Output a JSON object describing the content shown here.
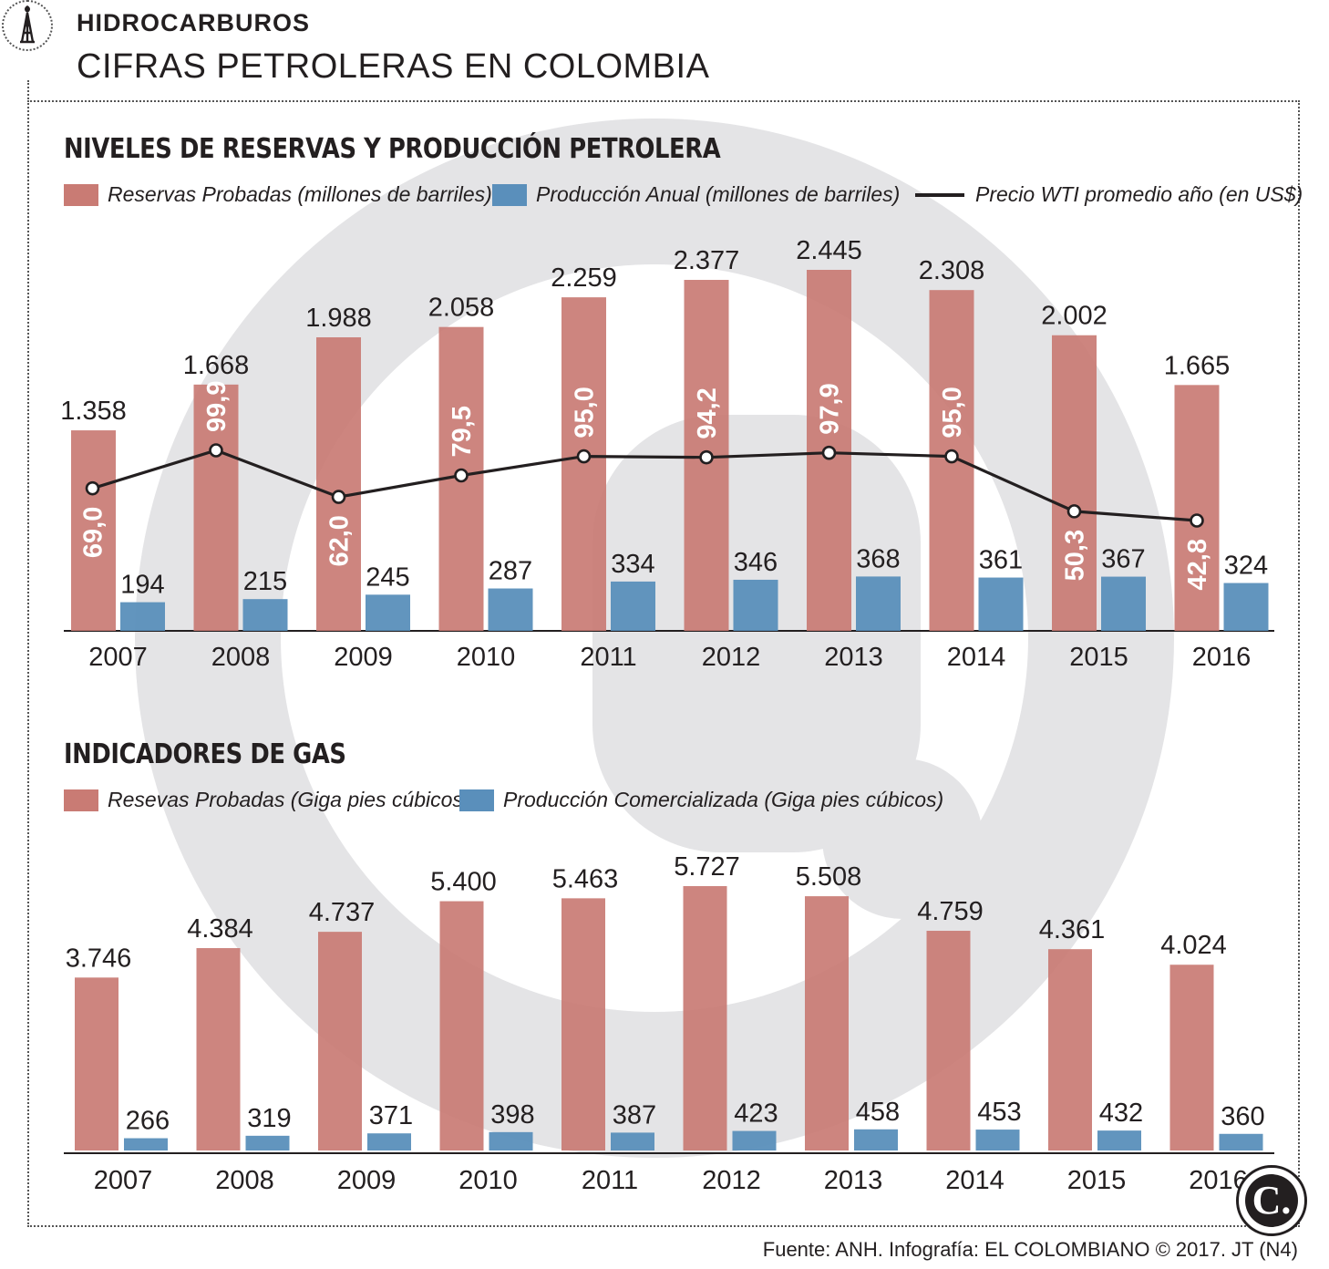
{
  "header": {
    "kicker": "HIDROCARBUROS",
    "headline": "CIFRAS PETROLERAS EN COLOMBIA",
    "icon": "oil-derrick-icon"
  },
  "colors": {
    "reserves": "#c97b74",
    "production": "#5a8fbb",
    "line": "#231f20",
    "watermark": "#e4e4e6"
  },
  "oil": {
    "title": "NIVELES DE RESERVAS Y PRODUCCIÓN PETROLERA",
    "legend": {
      "reserves": "Reservas Probadas (millones de barriles)",
      "production": "Producción Anual  (millones de barriles)",
      "price": "Precio WTI promedio año (en US$)"
    }
  },
  "gas": {
    "title": "INDICADORES DE GAS",
    "legend": {
      "reserves": "Resevas Probadas (Giga pies cúbicos)",
      "production": "Producción Comercializada (Giga pies cúbicos)"
    }
  },
  "chart_data": [
    {
      "type": "bar",
      "title": "NIVELES DE RESERVAS Y PRODUCCIÓN PETROLERA",
      "categories": [
        "2007",
        "2008",
        "2009",
        "2010",
        "2011",
        "2012",
        "2013",
        "2014",
        "2015",
        "2016"
      ],
      "series": [
        {
          "name": "Reservas Probadas (millones de barriles)",
          "values": [
            1358,
            1668,
            1988,
            2058,
            2259,
            2377,
            2445,
            2308,
            2002,
            1665
          ],
          "labels": [
            "1.358",
            "1.668",
            "1.988",
            "2.058",
            "2.259",
            "2.377",
            "2.445",
            "2.308",
            "2.002",
            "1.665"
          ]
        },
        {
          "name": "Producción Anual  (millones de barriles)",
          "values": [
            194,
            215,
            245,
            287,
            334,
            346,
            368,
            361,
            367,
            324
          ],
          "labels": [
            "194",
            "215",
            "245",
            "287",
            "334",
            "346",
            "368",
            "361",
            "367",
            "324"
          ]
        },
        {
          "name": "Precio WTI promedio año (en US$)",
          "type": "line",
          "values": [
            69.0,
            99.9,
            62.0,
            79.5,
            95.0,
            94.2,
            97.9,
            95.0,
            50.3,
            42.8
          ],
          "labels": [
            "69,0",
            "99,9",
            "62,0",
            "79,5",
            "95,0",
            "94,2",
            "97,9",
            "95,0",
            "50,3",
            "42,8"
          ]
        }
      ],
      "ylim": [
        0,
        2445
      ]
    },
    {
      "type": "bar",
      "title": "INDICADORES DE GAS",
      "categories": [
        "2007",
        "2008",
        "2009",
        "2010",
        "2011",
        "2012",
        "2013",
        "2014",
        "2015",
        "2016"
      ],
      "series": [
        {
          "name": "Resevas Probadas (Giga pies cúbicos)",
          "values": [
            3746,
            4384,
            4737,
            5400,
            5463,
            5727,
            5508,
            4759,
            4361,
            4024
          ],
          "labels": [
            "3.746",
            "4.384",
            "4.737",
            "5.400",
            "5.463",
            "5.727",
            "5.508",
            "4.759",
            "4.361",
            "4.024"
          ]
        },
        {
          "name": "Producción Comercializada (Giga pies cúbicos)",
          "values": [
            266,
            319,
            371,
            398,
            387,
            423,
            458,
            453,
            432,
            360
          ],
          "labels": [
            "266",
            "319",
            "371",
            "398",
            "387",
            "423",
            "458",
            "453",
            "432",
            "360"
          ]
        }
      ],
      "ylim": [
        0,
        5727
      ]
    }
  ],
  "footer": {
    "source": "Fuente: ANH. Infografía: EL COLOMBIANO © 2017. JT (N4)",
    "logo_letter": "C."
  }
}
